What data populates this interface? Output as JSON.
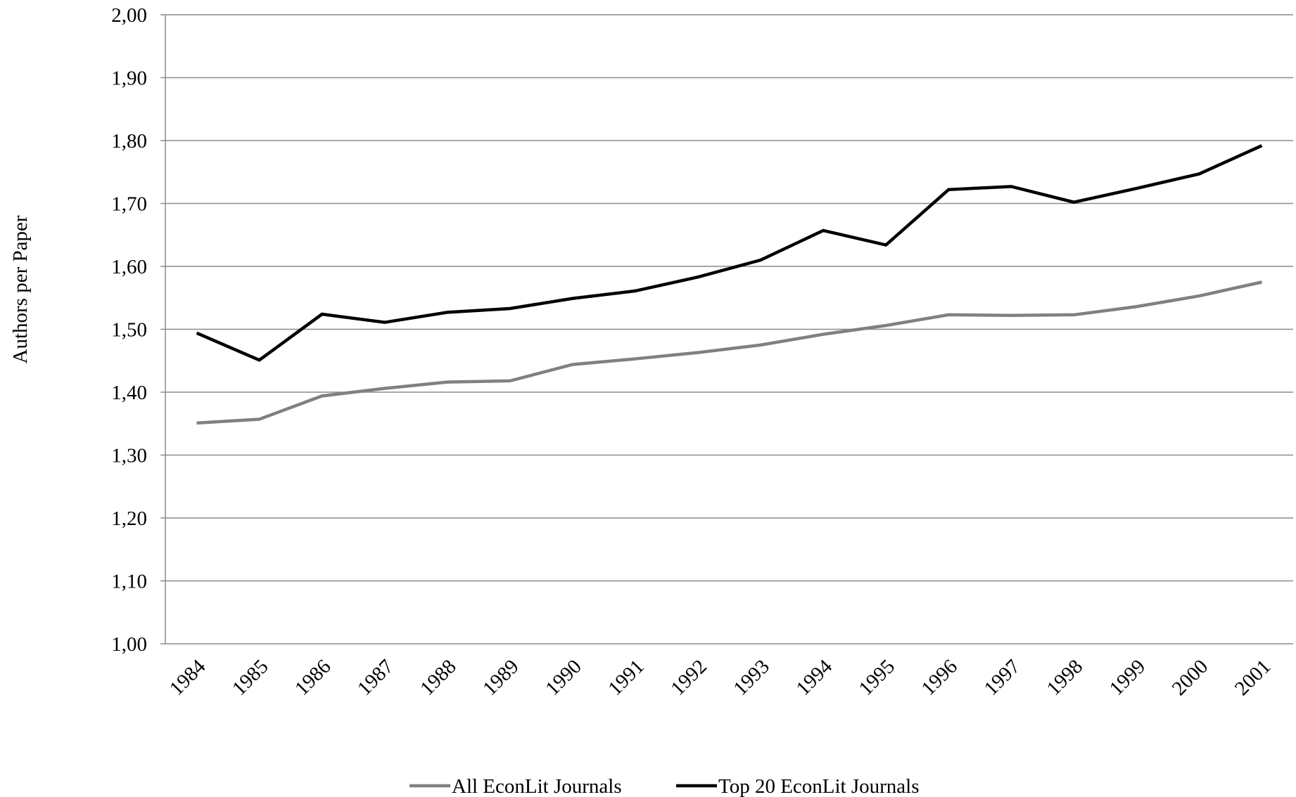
{
  "chart_data": {
    "type": "line",
    "title": "",
    "xlabel": "",
    "ylabel": "Authors per Paper",
    "x": [
      "1984",
      "1985",
      "1986",
      "1987",
      "1988",
      "1989",
      "1990",
      "1991",
      "1992",
      "1993",
      "1994",
      "1995",
      "1996",
      "1997",
      "1998",
      "1999",
      "2000",
      "2001"
    ],
    "yticks": [
      "1,00",
      "1,10",
      "1,20",
      "1,30",
      "1,40",
      "1,50",
      "1,60",
      "1,70",
      "1,80",
      "1,90",
      "2,00"
    ],
    "ylim": [
      1.0,
      2.0
    ],
    "grid": true,
    "legend_position": "bottom",
    "series": [
      {
        "name": "All EconLit Journals",
        "color": "#808080",
        "values": [
          1.351,
          1.357,
          1.394,
          1.406,
          1.416,
          1.418,
          1.444,
          1.453,
          1.463,
          1.475,
          1.492,
          1.506,
          1.523,
          1.522,
          1.523,
          1.536,
          1.553,
          1.575
        ]
      },
      {
        "name": "Top 20 EconLit Journals",
        "color": "#000000",
        "values": [
          1.494,
          1.451,
          1.524,
          1.511,
          1.527,
          1.533,
          1.549,
          1.561,
          1.583,
          1.61,
          1.657,
          1.634,
          1.722,
          1.727,
          1.702,
          1.724,
          1.747,
          1.792
        ]
      }
    ]
  }
}
